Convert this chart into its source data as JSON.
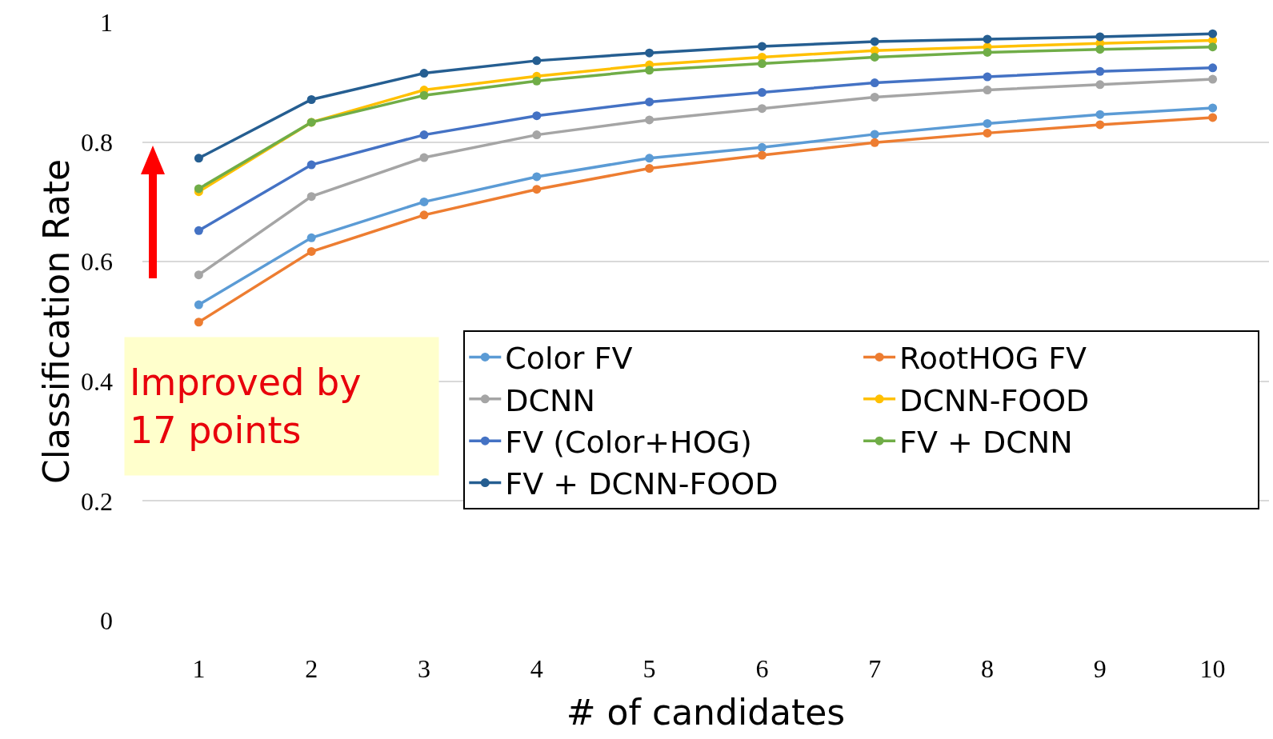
{
  "chart_data": {
    "type": "line",
    "xlabel": "# of candidates",
    "ylabel": "Classification Rate",
    "x": [
      1,
      2,
      3,
      4,
      5,
      6,
      7,
      8,
      9,
      10
    ],
    "series": [
      {
        "name": "Color FV",
        "color": "#5b9bd5",
        "values": [
          0.528,
          0.64,
          0.7,
          0.742,
          0.773,
          0.791,
          0.813,
          0.831,
          0.846,
          0.857
        ]
      },
      {
        "name": "RootHOG FV",
        "color": "#ed7d31",
        "values": [
          0.499,
          0.617,
          0.678,
          0.721,
          0.756,
          0.778,
          0.799,
          0.815,
          0.829,
          0.841
        ]
      },
      {
        "name": "DCNN",
        "color": "#a5a5a5",
        "values": [
          0.578,
          0.709,
          0.774,
          0.812,
          0.837,
          0.856,
          0.875,
          0.887,
          0.896,
          0.905
        ]
      },
      {
        "name": "DCNN-FOOD",
        "color": "#ffc000",
        "values": [
          0.717,
          0.833,
          0.887,
          0.91,
          0.929,
          0.942,
          0.953,
          0.959,
          0.965,
          0.97
        ]
      },
      {
        "name": "FV (Color+HOG)",
        "color": "#4472c4",
        "values": [
          0.652,
          0.762,
          0.812,
          0.844,
          0.867,
          0.883,
          0.899,
          0.909,
          0.918,
          0.924
        ]
      },
      {
        "name": "FV + DCNN",
        "color": "#70ad47",
        "values": [
          0.722,
          0.833,
          0.878,
          0.902,
          0.92,
          0.931,
          0.942,
          0.95,
          0.955,
          0.959
        ]
      },
      {
        "name": "FV + DCNN-FOOD",
        "color": "#255e91",
        "values": [
          0.773,
          0.871,
          0.915,
          0.936,
          0.949,
          0.96,
          0.968,
          0.972,
          0.976,
          0.981
        ]
      }
    ],
    "xlim": [
      0.5,
      10.5
    ],
    "xticks": [
      1,
      2,
      3,
      4,
      5,
      6,
      7,
      8,
      9,
      10
    ],
    "ylim": [
      0,
      1
    ],
    "yticks": [
      0,
      0.2,
      0.4,
      0.6,
      0.8,
      1
    ],
    "grid": "y",
    "legend": "bottom right",
    "marker": "circle",
    "line_style": "solid",
    "annotations": [
      "Improved by\n17 points"
    ]
  }
}
